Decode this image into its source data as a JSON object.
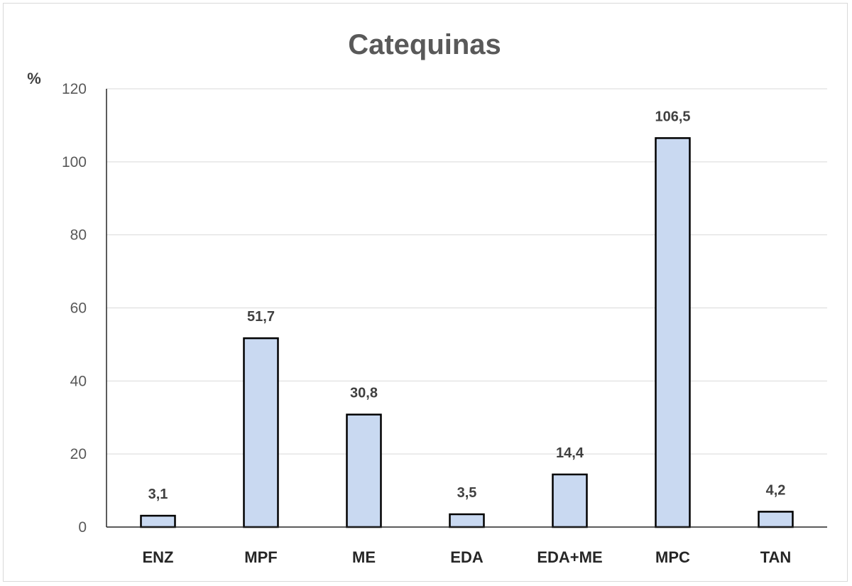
{
  "chart_data": {
    "type": "bar",
    "title": "Catequinas",
    "ylabel": "%",
    "xlabel": "",
    "categories": [
      "ENZ",
      "MPF",
      "ME",
      "EDA",
      "EDA+ME",
      "MPC",
      "TAN"
    ],
    "values": [
      3.1,
      51.7,
      30.8,
      3.5,
      14.4,
      106.5,
      4.2
    ],
    "data_labels": [
      "3,1",
      "51,7",
      "30,8",
      "3,5",
      "14,4",
      "106,5",
      "4,2"
    ],
    "ylim": [
      0,
      120
    ],
    "yticks": [
      0,
      20,
      40,
      60,
      80,
      100,
      120
    ],
    "grid": true,
    "legend": "none",
    "colors": {
      "bar_fill": "#c9d9f1",
      "bar_stroke": "#000000",
      "gridline": "#d9d9d9",
      "title": "#595959"
    }
  }
}
